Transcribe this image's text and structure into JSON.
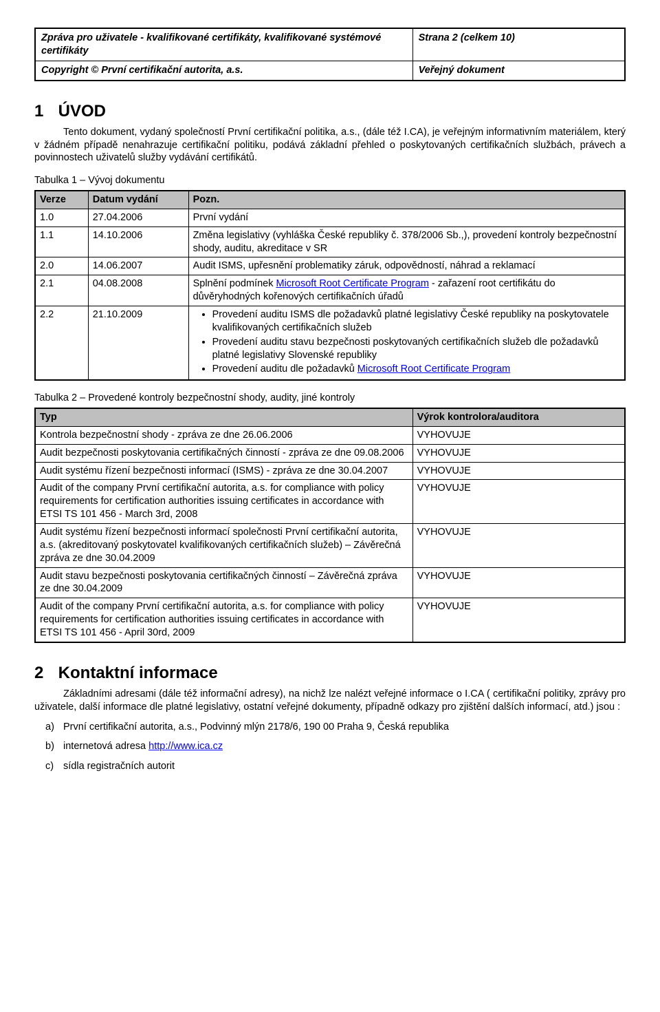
{
  "header": {
    "title_left": "Zpráva pro uživatele - kvalifikované certifikáty, kvalifikované systémové certifikáty",
    "title_right": "Strana 2 (celkem 10)",
    "sub_left": "Copyright © První certifikační autorita, a.s.",
    "sub_right": "Veřejný dokument"
  },
  "section1": {
    "num": "1",
    "title": "ÚVOD",
    "para": "Tento dokument, vydaný společností První certifikační politika, a.s., (dále též I.CA), je veřejným informativním materiálem, který v žádném případě nenahrazuje certifikační politiku, podává základní přehled o poskytovaných certifikačních službách, právech a povinnostech uživatelů služby vydávání certifikátů."
  },
  "table1": {
    "caption": "Tabulka 1 – Vývoj dokumentu",
    "header": {
      "verze": "Verze",
      "datum": "Datum vydání",
      "pozn": "Pozn."
    },
    "rows": [
      {
        "verze": "1.0",
        "datum": "27.04.2006",
        "pozn": "První vydání"
      },
      {
        "verze": "1.1",
        "datum": "14.10.2006",
        "pozn": "Změna legislativy (vyhláška České republiky č. 378/2006 Sb.,), provedení kontroly bezpečnostní shody, auditu, akreditace v SR"
      },
      {
        "verze": "2.0",
        "datum": "14.06.2007",
        "pozn": "Audit ISMS, upřesnění problematiky záruk, odpovědností, náhrad a reklamací"
      },
      {
        "verze": "2.1",
        "datum": "04.08.2008",
        "pozn_before": "Splnění podmínek ",
        "pozn_link": "Microsoft Root Certificate Program",
        "pozn_after": " - zařazení root certifikátu do důvěryhodných kořenových certifikačních úřadů"
      }
    ],
    "row_22": {
      "verze": "2.2",
      "datum": "21.10.2009",
      "bullets": [
        "Provedení auditu ISMS dle požadavků platné legislativy České republiky na poskytovatele kvalifikovaných certifikačních služeb",
        "Provedení auditu stavu bezpečnosti poskytovaných certifikačních služeb dle požadavků platné legislativy Slovenské republiky"
      ],
      "bullet3_before": "Provedení auditu dle požadavků ",
      "bullet3_link": "Microsoft Root Certificate Program"
    }
  },
  "table2": {
    "caption": "Tabulka 2 – Provedené kontroly bezpečnostní shody, audity, jiné kontroly",
    "header": {
      "typ": "Typ",
      "vyrok": "Výrok kontrolora/auditora"
    },
    "rows": [
      {
        "typ": "Kontrola bezpečnostní shody - zpráva ze dne 26.06.2006",
        "vyrok": "VYHOVUJE"
      },
      {
        "typ": "Audit bezpečnosti poskytovania certifikačných činností - zpráva ze dne 09.08.2006",
        "vyrok": "VYHOVUJE"
      },
      {
        "typ": "Audit systému řízení bezpečnosti informací (ISMS) - zpráva ze dne 30.04.2007",
        "vyrok": "VYHOVUJE"
      },
      {
        "typ": "Audit of the company První certifikační autorita, a.s. for compliance with policy requirements for certification authorities issuing certificates in accordance with ETSI TS 101 456  - March 3rd, 2008",
        "vyrok": "VYHOVUJE"
      },
      {
        "typ": "Audit systému řízení bezpečnosti informací společnosti První certifikační autorita, a.s. (akreditovaný poskytovatel kvalifikovaných certifikačních služeb) – Závěrečná zpráva ze dne 30.04.2009",
        "vyrok": "VYHOVUJE"
      },
      {
        "typ": "Audit stavu bezpečnosti poskytovania certifikačných činností – Závěrečná zpráva ze dne 30.04.2009",
        "vyrok": "VYHOVUJE"
      },
      {
        "typ": "Audit of the company První certifikační autorita, a.s. for compliance with policy requirements for certification authorities issuing certificates in accordance with ETSI TS 101 456  - April 30rd, 2009",
        "vyrok": "VYHOVUJE"
      }
    ]
  },
  "section2": {
    "num": "2",
    "title": "Kontaktní informace",
    "para": "Základními adresami (dále též informační adresy), na nichž lze nalézt veřejné informace o I.CA ( certifikační politiky, zprávy pro uživatele, další informace dle platné legislativy, ostatní veřejné dokumenty, případně odkazy pro zjištění dalších informací,  atd.) jsou :",
    "items": {
      "a": "První certifikační autorita, a.s., Podvinný mlýn 2178/6, 190 00 Praha 9, Česká republika",
      "b_before": "internetová adresa ",
      "b_link": "http://www.ica.cz",
      "c": "sídla registračních autorit"
    }
  }
}
